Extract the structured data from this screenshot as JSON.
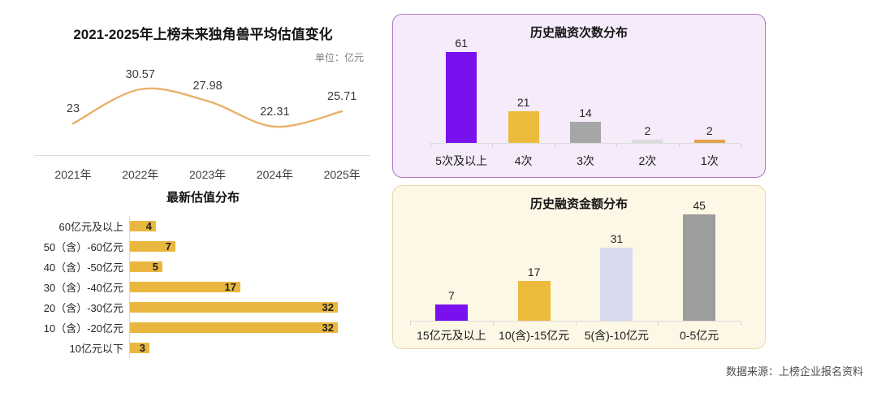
{
  "page": {
    "background": "#FFFFFF",
    "source_note": "数据来源：上榜企业报名资料"
  },
  "chart_data": [
    {
      "id": "avg-valuation-trend",
      "type": "line",
      "title": "2021-2025年上榜未来独角兽平均估值变化",
      "unit_label": "单位：亿元",
      "categories": [
        "2021年",
        "2022年",
        "2023年",
        "2024年",
        "2025年"
      ],
      "values": [
        23,
        30.57,
        27.98,
        22.31,
        25.71
      ],
      "value_labels": [
        "23",
        "30.57",
        "27.98",
        "22.31",
        "25.71"
      ],
      "line_color": "#E9B16C",
      "axis_color": "#DCDCDC",
      "ylim": [
        20,
        32
      ],
      "grid": false,
      "legend": "none"
    },
    {
      "id": "latest-valuation-distribution",
      "type": "bar",
      "orientation": "horizontal",
      "title": "最新估值分布",
      "categories": [
        "60亿元及以上",
        "50（含）-60亿元",
        "40（含）-50亿元",
        "30（含）-40亿元",
        "20（含）-30亿元",
        "10（含）-20亿元",
        "10亿元以下"
      ],
      "values": [
        4,
        7,
        5,
        17,
        32,
        32,
        3
      ],
      "bar_color": "#E9B73F",
      "axis_color": "#D9D9D9",
      "xlim": [
        0,
        34
      ],
      "value_label_position": "inside-end"
    },
    {
      "id": "funding-rounds-distribution",
      "type": "bar",
      "orientation": "vertical",
      "title": "历史融资次数分布",
      "categories": [
        "5次及以上",
        "4次",
        "3次",
        "2次",
        "1次"
      ],
      "values": [
        61,
        21,
        14,
        2,
        2
      ],
      "bar_colors": [
        "#7B10EE",
        "#ECBB3C",
        "#A6A6A6",
        "#DBDBDB",
        "#E2A44F"
      ],
      "panel_bg": "#F5EBFA",
      "panel_border": "#B476CE",
      "axis_color": "#DCDCDC",
      "ylim": [
        0,
        65
      ],
      "grid": false
    },
    {
      "id": "funding-amount-distribution",
      "type": "bar",
      "orientation": "vertical",
      "title": "历史融资金额分布",
      "categories": [
        "15亿元及以上",
        "10(含)-15亿元",
        "5(含)-10亿元",
        "0-5亿元"
      ],
      "values": [
        7,
        17,
        31,
        45
      ],
      "bar_colors": [
        "#7B10EE",
        "#ECBB3C",
        "#D8DAED",
        "#9D9D9D"
      ],
      "panel_bg": "#FDF7E5",
      "panel_border": "#E6D9AE",
      "axis_color": "#DCDCDC",
      "ylim": [
        0,
        50
      ],
      "grid": false
    }
  ]
}
